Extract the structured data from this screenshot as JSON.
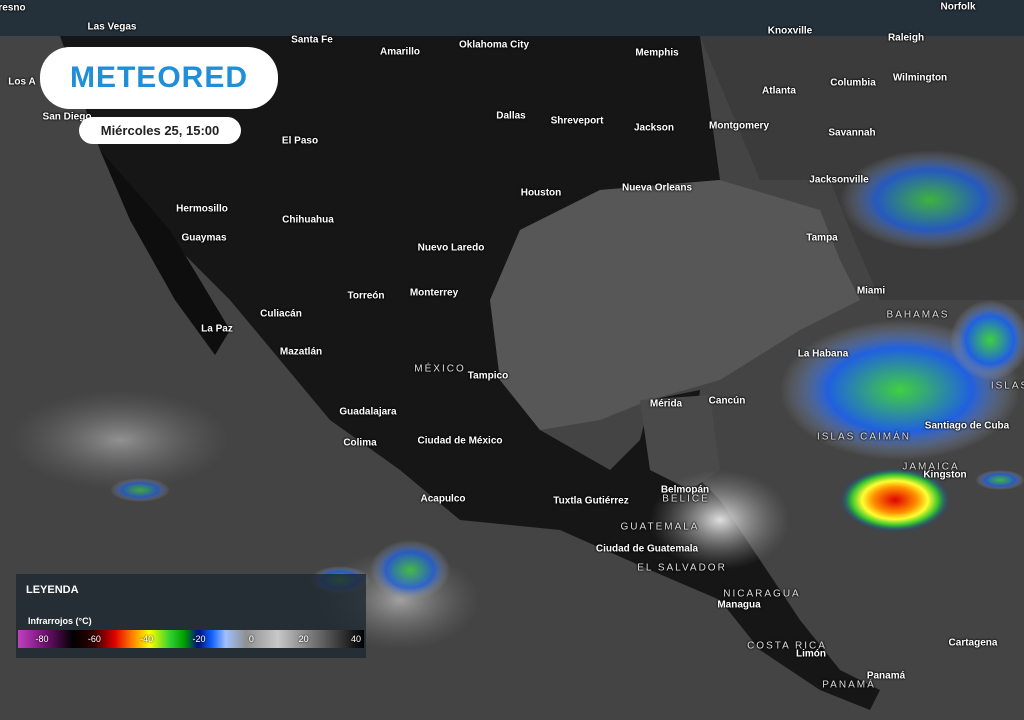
{
  "header": {
    "logo": "METEORED",
    "date": "Miércoles 25, 15:00"
  },
  "places": [
    "resno",
    "Las Vegas",
    "Knoxville",
    "Norfolk",
    "Santa Fe",
    "Amarillo",
    "Oklahoma City",
    "Memphis",
    "Raleigh",
    "Los A",
    "Atlanta",
    "Columbia",
    "Wilmington",
    "San Diego",
    "Dallas",
    "Shreveport",
    "Jackson",
    "Montgomery",
    "Savannah",
    "El Paso",
    "Houston",
    "Nueva Orleans",
    "Jacksonville",
    "Hermosillo",
    "Chihuahua",
    "Guaymas",
    "Tampa",
    "Nuevo Laredo",
    "Torreón",
    "Monterrey",
    "Miami",
    "Culiacán",
    "La Paz",
    "Mazatlán",
    "La Habana",
    "Tampico",
    "Mérida",
    "Cancún",
    "Guadalajara",
    "Santiago de Cuba",
    "Colima",
    "Ciudad de México",
    "Kingston",
    "Belmopán",
    "Tuxtla Gutiérrez",
    "Acapulco",
    "Ciudad de Guatemala",
    "Managua",
    "Cartagena",
    "Limón",
    "Panamá"
  ],
  "regions": [
    "BAHAMAS",
    "MÉXICO",
    "ISLAS",
    "ISLAS CAIMÁN",
    "JAMAICA",
    "BELICE",
    "GUATEMALA",
    "EL SALVADOR",
    "NICARAGUA",
    "COSTA RICA",
    "PANAMÁ"
  ],
  "legend": {
    "title": "LEYENDA",
    "subtitle": "Infrarrojos (°C)",
    "scale": [
      -80,
      -60,
      -40,
      -20,
      0,
      20,
      40
    ]
  }
}
